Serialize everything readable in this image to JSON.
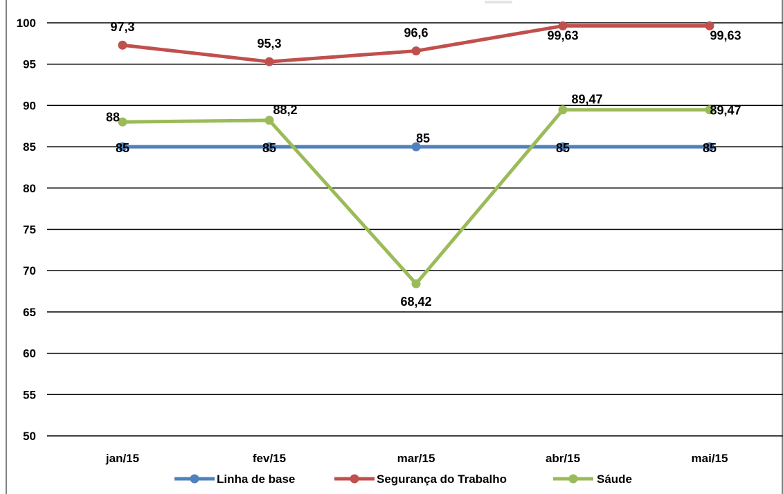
{
  "chart_data": {
    "type": "line",
    "categories": [
      "jan/15",
      "fev/15",
      "mar/15",
      "abr/15",
      "mai/15"
    ],
    "series": [
      {
        "name": "Linha de base",
        "color": "#4F81BD",
        "values": [
          85,
          85,
          85,
          85,
          85
        ],
        "labels": [
          "85",
          "85",
          "85",
          "85",
          "85"
        ]
      },
      {
        "name": "Segurança do Trabalho",
        "color": "#C0504D",
        "values": [
          97.3,
          95.3,
          96.6,
          99.63,
          99.63
        ],
        "labels": [
          "97,3",
          "95,3",
          "96,6",
          "99,63",
          "99,63"
        ]
      },
      {
        "name": "Sáude",
        "color": "#9BBB59",
        "values": [
          88,
          88.2,
          68.42,
          89.47,
          89.47
        ],
        "labels": [
          "88",
          "88,2",
          "68,42",
          "89,47",
          "89,47"
        ]
      }
    ],
    "yticks": [
      "50",
      "55",
      "60",
      "65",
      "70",
      "75",
      "80",
      "85",
      "90",
      "95",
      "100"
    ],
    "ylim": [
      50,
      100
    ],
    "grid": true,
    "legend_position": "bottom",
    "title": "",
    "xlabel": "",
    "ylabel": ""
  }
}
